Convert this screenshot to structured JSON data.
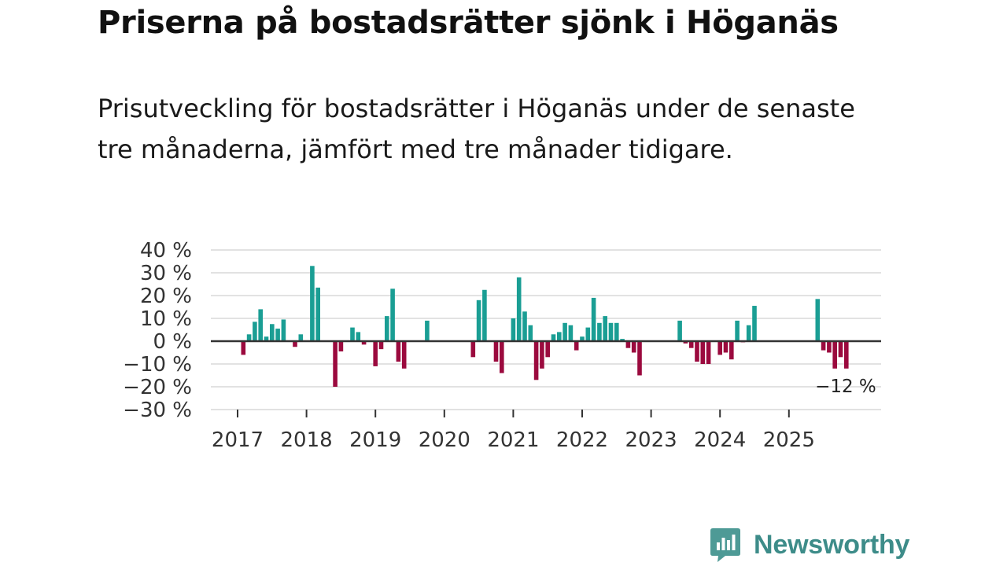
{
  "chart_data": {
    "type": "bar",
    "title": "Priserna på bostadsrätter sjönk i Höganäs",
    "subtitle": "Prisutveckling för bostadsrätter i Höganäs under de senaste tre månaderna, jämfört med tre månader tidigare.",
    "xlabel": "",
    "ylabel": "",
    "ylim": [
      -30,
      40
    ],
    "y_ticks": [
      {
        "value": 40,
        "label": "40 %"
      },
      {
        "value": 30,
        "label": "30 %"
      },
      {
        "value": 20,
        "label": "20 %"
      },
      {
        "value": 10,
        "label": "10 %"
      },
      {
        "value": 0,
        "label": "0 %"
      },
      {
        "value": -10,
        "label": "−10 %"
      },
      {
        "value": -20,
        "label": "−20 %"
      },
      {
        "value": -30,
        "label": "−30 %"
      }
    ],
    "x_ticks": [
      "2017",
      "2018",
      "2019",
      "2020",
      "2021",
      "2022",
      "2023",
      "2024",
      "2025"
    ],
    "start_year": 2017,
    "grid": true,
    "colors": {
      "positive": "#1a9e94",
      "negative": "#9b0a3e",
      "grid": "#d9d9d9",
      "zero_line": "#333333",
      "text": "#333333"
    },
    "series": [
      {
        "name": "Prisutveckling",
        "values": [
          null,
          -6,
          3,
          8.5,
          14,
          2,
          7.5,
          5.5,
          9.5,
          null,
          -2.5,
          3,
          null,
          33,
          23.5,
          null,
          null,
          -20,
          -4.5,
          null,
          6,
          4,
          -1.5,
          null,
          -11,
          -3.5,
          11,
          23,
          -9,
          -12,
          null,
          null,
          null,
          9,
          null,
          null,
          null,
          null,
          null,
          null,
          null,
          -7,
          18,
          22.5,
          null,
          -9,
          -14,
          null,
          10,
          28,
          13,
          7,
          -17,
          -12,
          -7,
          3,
          4,
          8,
          7,
          -4,
          2,
          6,
          19,
          8,
          11,
          8,
          8,
          1,
          -3,
          -5,
          -15,
          null,
          null,
          null,
          null,
          null,
          null,
          9,
          -1,
          -3,
          -9,
          -10,
          -10,
          null,
          -6,
          -5,
          -8,
          9,
          -0.5,
          7,
          15.5,
          null,
          null,
          null,
          null,
          null,
          null,
          null,
          null,
          null,
          null,
          18.5,
          -4,
          -5,
          -12,
          -7,
          -12
        ]
      }
    ],
    "annotations": [
      {
        "text": "−12 %",
        "target": "last"
      }
    ]
  },
  "brand": {
    "name": "Newsworthy"
  }
}
